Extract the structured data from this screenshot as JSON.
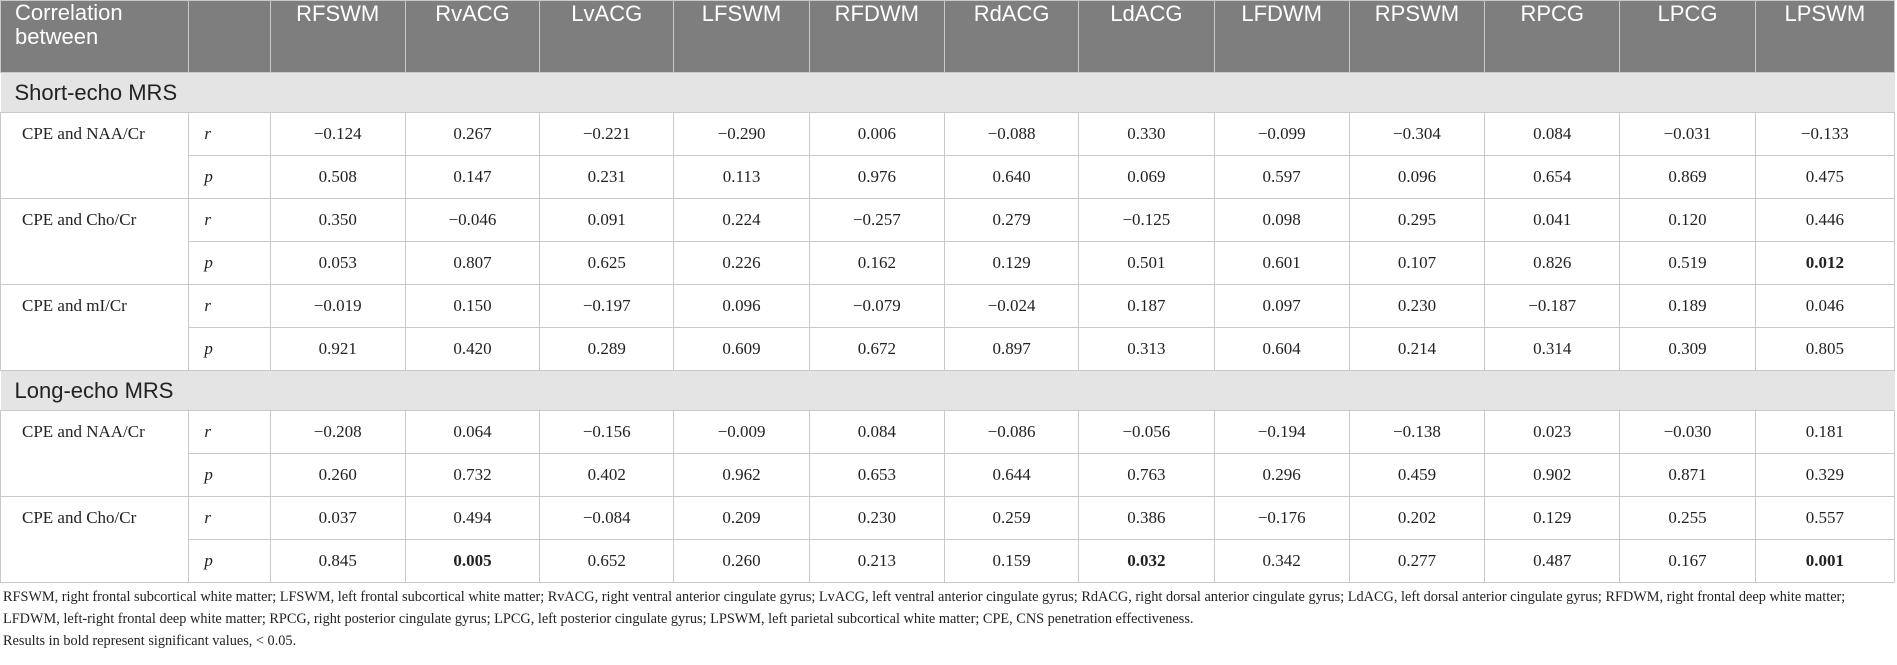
{
  "header": {
    "first_col": "Correlation between",
    "columns": [
      "RFSWM",
      "RvACG",
      "LvACG",
      "LFSWM",
      "RFDWM",
      "RdACG",
      "LdACG",
      "LFDWM",
      "RPSWM",
      "RPCG",
      "LPCG",
      "LPSWM"
    ]
  },
  "sections": [
    {
      "title": "Short-echo MRS",
      "groups": [
        {
          "label": "CPE and NAA/Cr",
          "r": [
            "−0.124",
            "0.267",
            "−0.221",
            "−0.290",
            "0.006",
            "−0.088",
            "0.330",
            "−0.099",
            "−0.304",
            "0.084",
            "−0.031",
            "−0.133"
          ],
          "p": [
            "0.508",
            "0.147",
            "0.231",
            "0.113",
            "0.976",
            "0.640",
            "0.069",
            "0.597",
            "0.096",
            "0.654",
            "0.869",
            "0.475"
          ]
        },
        {
          "label": "CPE and Cho/Cr",
          "r": [
            "0.350",
            "−0.046",
            "0.091",
            "0.224",
            "−0.257",
            "0.279",
            "−0.125",
            "0.098",
            "0.295",
            "0.041",
            "0.120",
            "0.446"
          ],
          "p": [
            "0.053",
            "0.807",
            "0.625",
            "0.226",
            "0.162",
            "0.129",
            "0.501",
            "0.601",
            "0.107",
            "0.826",
            "0.519",
            "0.012"
          ]
        },
        {
          "label": "CPE and mI/Cr",
          "r": [
            "−0.019",
            "0.150",
            "−0.197",
            "0.096",
            "−0.079",
            "−0.024",
            "0.187",
            "0.097",
            "0.230",
            "−0.187",
            "0.189",
            "0.046"
          ],
          "p": [
            "0.921",
            "0.420",
            "0.289",
            "0.609",
            "0.672",
            "0.897",
            "0.313",
            "0.604",
            "0.214",
            "0.314",
            "0.309",
            "0.805"
          ]
        }
      ]
    },
    {
      "title": "Long-echo MRS",
      "groups": [
        {
          "label": "CPE and NAA/Cr",
          "r": [
            "−0.208",
            "0.064",
            "−0.156",
            "−0.009",
            "0.084",
            "−0.086",
            "−0.056",
            "−0.194",
            "−0.138",
            "0.023",
            "−0.030",
            "0.181"
          ],
          "p": [
            "0.260",
            "0.732",
            "0.402",
            "0.962",
            "0.653",
            "0.644",
            "0.763",
            "0.296",
            "0.459",
            "0.902",
            "0.871",
            "0.329"
          ]
        },
        {
          "label": "CPE and Cho/Cr",
          "r": [
            "0.037",
            "0.494",
            "−0.084",
            "0.209",
            "0.230",
            "0.259",
            "0.386",
            "−0.176",
            "0.202",
            "0.129",
            "0.255",
            "0.557"
          ],
          "p": [
            "0.845",
            "0.005",
            "0.652",
            "0.260",
            "0.213",
            "0.159",
            "0.032",
            "0.342",
            "0.277",
            "0.487",
            "0.167",
            "0.001"
          ]
        }
      ]
    }
  ],
  "stat_labels": {
    "r": "r",
    "p": "p"
  },
  "bold_cells": [
    {
      "section": 0,
      "group": 1,
      "row": "p",
      "col": 11
    },
    {
      "section": 1,
      "group": 1,
      "row": "p",
      "col": 1
    },
    {
      "section": 1,
      "group": 1,
      "row": "p",
      "col": 6
    },
    {
      "section": 1,
      "group": 1,
      "row": "p",
      "col": 11
    }
  ],
  "footnotes": {
    "abbreviations": "RFSWM, right frontal subcortical white matter; LFSWM, left frontal subcortical white matter; RvACG, right ventral anterior cingulate gyrus; LvACG, left ventral anterior cingulate gyrus; RdACG, right dorsal anterior cingulate gyrus; LdACG, left dorsal anterior cingulate gyrus; RFDWM, right frontal deep white matter; LFDWM, left-right frontal deep white matter; RPCG, right posterior cingulate gyrus; LPCG, left posterior cingulate gyrus; LPSWM, left parietal subcortical white matter; CPE, CNS penetration effectiveness.",
    "significance": "Results in bold represent significant values, < 0.05."
  }
}
